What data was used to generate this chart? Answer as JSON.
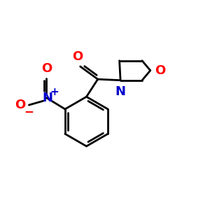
{
  "background_color": "#ffffff",
  "bond_color": "#000000",
  "nitrogen_color": "#0000cc",
  "oxygen_color": "#ff0000",
  "font_size_atom": 13,
  "font_size_charge": 9,
  "line_width": 2.0,
  "fig_w": 3.0,
  "fig_h": 3.0,
  "dpi": 100,
  "xlim": [
    0,
    10
  ],
  "ylim": [
    0,
    10
  ]
}
